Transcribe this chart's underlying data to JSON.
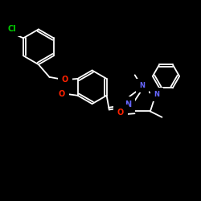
{
  "bg": "#000000",
  "bond_color": "#ffffff",
  "lw": 1.3,
  "Cl_color": "#00cc00",
  "N_color": "#6666ff",
  "O_color": "#ff2200",
  "fs": 6.0,
  "figsize": [
    2.5,
    2.5
  ],
  "dpi": 100,
  "xlim": [
    0,
    12
  ],
  "ylim": [
    0,
    12
  ]
}
